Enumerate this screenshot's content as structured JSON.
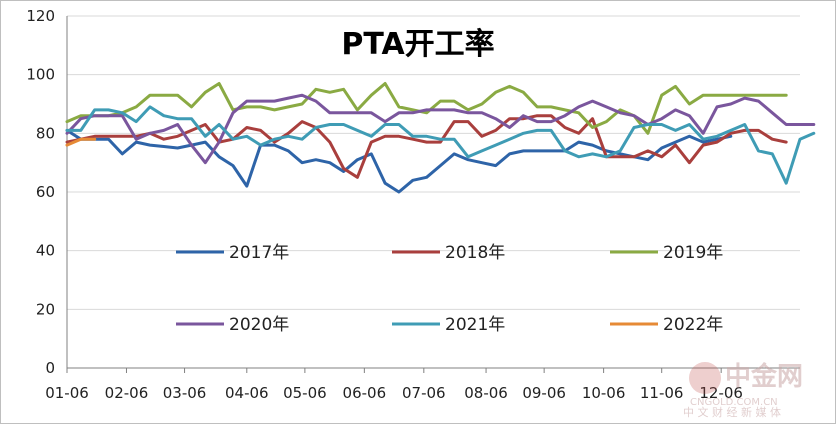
{
  "chart_data": {
    "type": "line",
    "title": "PTA开工率",
    "xlabel": "",
    "ylabel": "",
    "ylim": [
      0,
      120
    ],
    "yticks": [
      0,
      20,
      40,
      60,
      80,
      100,
      120
    ],
    "x_tick_labels": [
      "01-06",
      "02-06",
      "03-06",
      "04-06",
      "05-06",
      "06-06",
      "07-06",
      "08-06",
      "09-06",
      "10-06",
      "11-06",
      "12-06"
    ],
    "x_tick_positions": [
      0,
      4.3,
      8.5,
      13,
      17.2,
      21.5,
      25.8,
      30.3,
      34.5,
      38.8,
      43,
      47.3
    ],
    "grid": "horizontal",
    "legend_position": "inside-bottom",
    "series": [
      {
        "name": "2017年",
        "color": "#2e64a8",
        "values": [
          81,
          78,
          78,
          78,
          73,
          77,
          76,
          75.5,
          75,
          76,
          77,
          72,
          69,
          62,
          76,
          76,
          74,
          70,
          71,
          70,
          67,
          71,
          73,
          63,
          60,
          64,
          65,
          69,
          73,
          71,
          70,
          69,
          73,
          74,
          74,
          74,
          74,
          77,
          76,
          74,
          73,
          72,
          71,
          75,
          77,
          79,
          77,
          78,
          79
        ]
      },
      {
        "name": "2018年",
        "color": "#a93f3d",
        "values": [
          77,
          78,
          79,
          79,
          79,
          79,
          80,
          78,
          79,
          81,
          83,
          77,
          78,
          82,
          81,
          77,
          80,
          84,
          82,
          77,
          68,
          65,
          77,
          79,
          79,
          78,
          77,
          77,
          84,
          84,
          79,
          81,
          85,
          85,
          86,
          86,
          82,
          80,
          85,
          72,
          72,
          72,
          74,
          72,
          76,
          70,
          76,
          77,
          80,
          81,
          81,
          78,
          77
        ]
      },
      {
        "name": "2019年",
        "color": "#8aaa43",
        "values": [
          84,
          86,
          86,
          86,
          87,
          89,
          93,
          93,
          93,
          89,
          94,
          97,
          88,
          89,
          89,
          88,
          89,
          90,
          95,
          94,
          95,
          88,
          93,
          97,
          89,
          88,
          87,
          91,
          91,
          88,
          90,
          94,
          96,
          94,
          89,
          89,
          88,
          87,
          82,
          84,
          88,
          86,
          80,
          93,
          96,
          90,
          93,
          93,
          93,
          93,
          93,
          93,
          93
        ]
      },
      {
        "name": "2020年",
        "color": "#7a569d",
        "values": [
          80,
          85,
          86,
          86,
          86,
          78,
          80,
          81,
          83,
          76,
          70,
          77,
          87,
          91,
          91,
          91,
          92,
          93,
          91,
          87,
          87,
          87,
          87,
          84,
          87,
          87,
          88,
          88,
          88,
          87,
          87,
          85,
          82,
          86,
          84,
          84,
          86,
          89,
          91,
          89,
          87,
          86,
          83,
          85,
          88,
          86,
          80,
          89,
          90,
          92,
          91,
          87,
          83,
          83,
          83
        ]
      },
      {
        "name": "2021年",
        "color": "#3f9cb5",
        "values": [
          81,
          81,
          88,
          88,
          87,
          84,
          89,
          86,
          85,
          85,
          79,
          83,
          78,
          79,
          76,
          78,
          79,
          78,
          82,
          83,
          83,
          81,
          79,
          83,
          83,
          79,
          79,
          78,
          78,
          72,
          74,
          76,
          78,
          80,
          81,
          81,
          74,
          72,
          73,
          72,
          74,
          82,
          83,
          83,
          81,
          83,
          78,
          79,
          81,
          83,
          74,
          73,
          63,
          78,
          80
        ]
      },
      {
        "name": "2022年",
        "color": "#e68a35",
        "values": [
          76,
          78,
          78
        ]
      }
    ]
  },
  "watermark": {
    "brand": "中金网",
    "tagline": "中 文 财 经 新 媒 体",
    "url": "CNGOLD.COM.CN"
  }
}
